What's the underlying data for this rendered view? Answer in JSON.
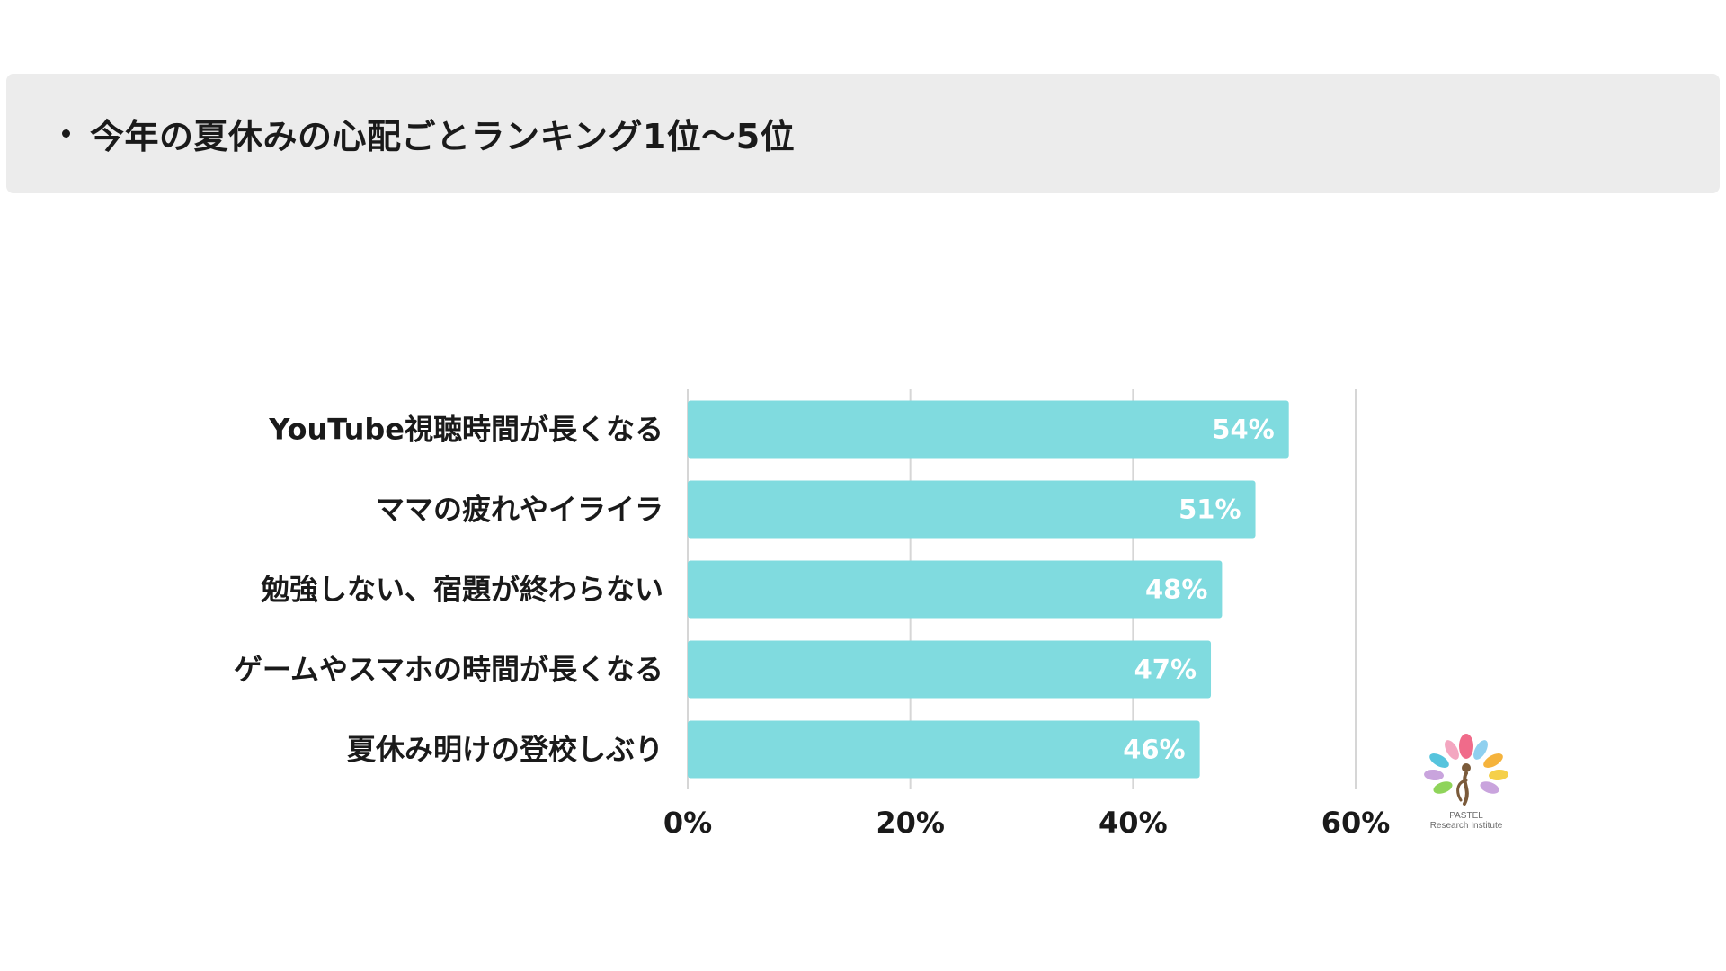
{
  "header": {
    "title": "今年の夏休みの心配ごとランキング1位〜5位"
  },
  "chart_data": {
    "type": "bar",
    "orientation": "horizontal",
    "categories": [
      "YouTube視聴時間が長くなる",
      "ママの疲れやイライラ",
      "勉強しない、宿題が終わらない",
      "ゲームやスマホの時間が長くなる",
      "夏休み明けの登校しぶり"
    ],
    "values": [
      54,
      51,
      48,
      47,
      46
    ],
    "data_labels": [
      "54%",
      "51%",
      "48%",
      "47%",
      "46%"
    ],
    "x_ticks": [
      0,
      20,
      40,
      60
    ],
    "x_tick_labels": [
      "0%",
      "20%",
      "40%",
      "60%"
    ],
    "xlim": [
      0,
      60
    ],
    "grid": true,
    "legend": "none",
    "bar_color": "#80dbdf",
    "label_color": "#ffffff"
  },
  "logo": {
    "line1": "PASTEL",
    "line2": "Research Institute"
  }
}
